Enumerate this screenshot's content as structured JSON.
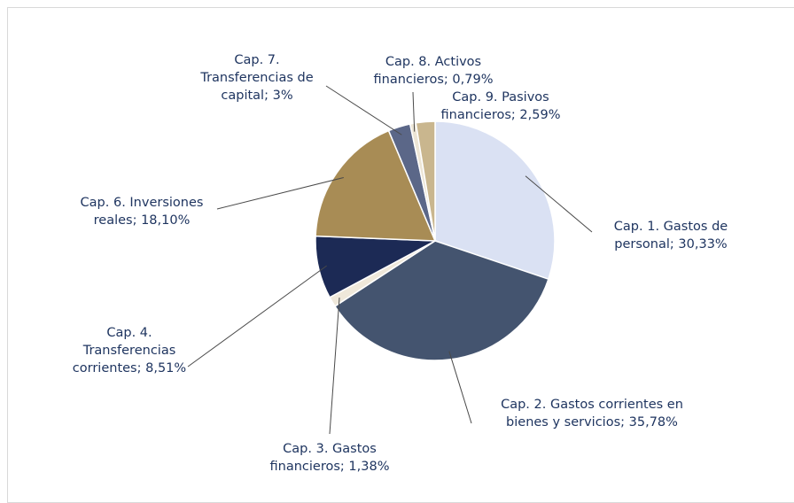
{
  "chart_data": {
    "type": "pie",
    "categories": [
      "Cap. 1. Gastos de personal",
      "Cap. 2. Gastos corrientes en bienes y servicios",
      "Cap. 3. Gastos financieros",
      "Cap. 4. Transferencias corrientes",
      "Cap. 6. Inversiones reales",
      "Cap. 7. Transferencias de capital",
      "Cap. 8. Activos financieros",
      "Cap. 9. Pasivos financieros"
    ],
    "values": [
      30.33,
      35.78,
      1.38,
      8.51,
      18.1,
      3,
      0.79,
      2.59
    ],
    "value_labels": [
      "30,33%",
      "35,78%",
      "1,38%",
      "8,51%",
      "18,10%",
      "3%",
      "0,79%",
      "2,59%"
    ],
    "colors": [
      "#dae1f3",
      "#44546f",
      "#efe8da",
      "#1c2a55",
      "#a88c55",
      "#5b6788",
      "#ece5d5",
      "#c9b68e"
    ]
  }
}
